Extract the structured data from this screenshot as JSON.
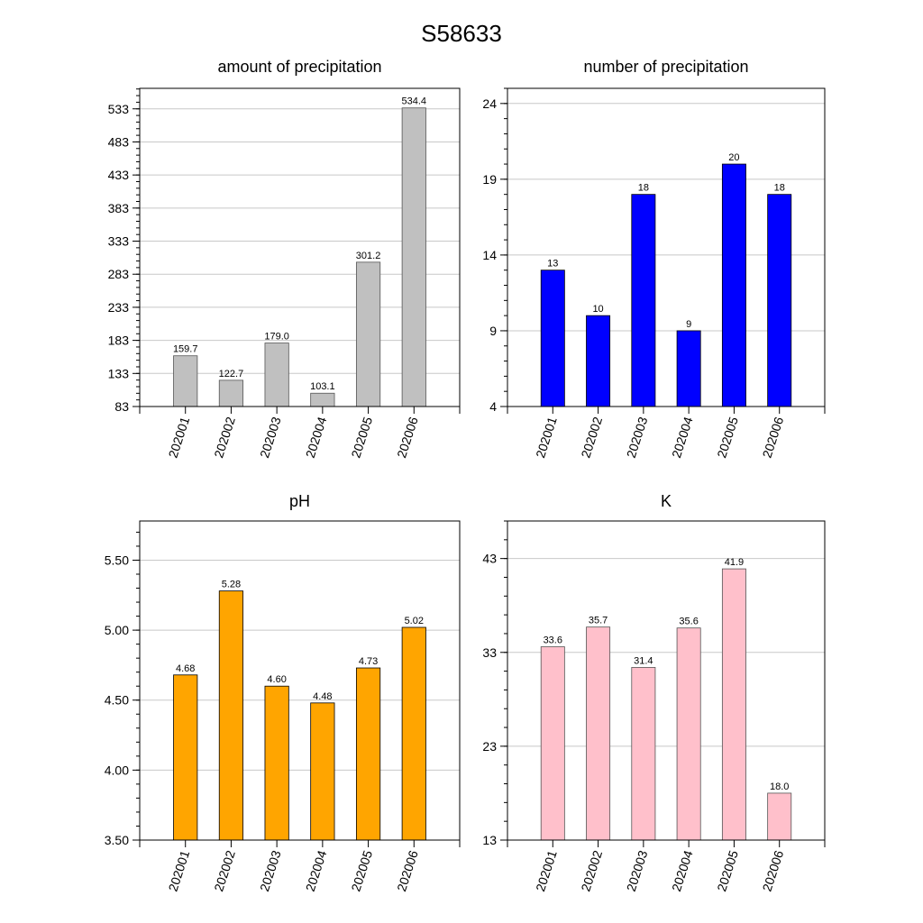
{
  "figure": {
    "title": "S58633"
  },
  "chart_data": [
    {
      "type": "bar",
      "title": "amount of precipitation",
      "xlabel": "",
      "ylabel": "",
      "categories": [
        "202001",
        "202002",
        "202003",
        "202004",
        "202005",
        "202006"
      ],
      "values": [
        159.7,
        122.7,
        179.0,
        103.1,
        301.2,
        534.4
      ],
      "value_labels": [
        "159.7",
        "122.7",
        "179.0",
        "103.1",
        "301.2",
        "534.4"
      ],
      "yticks": [
        83,
        133,
        183,
        233,
        283,
        333,
        383,
        433,
        483,
        533
      ],
      "ylim": [
        83,
        564
      ],
      "minor_step": 10,
      "grid": true,
      "bar_color": "#c0c0c0",
      "edge_color": "#555555"
    },
    {
      "type": "bar",
      "title": "number of precipitation",
      "xlabel": "",
      "ylabel": "",
      "categories": [
        "202001",
        "202002",
        "202003",
        "202004",
        "202005",
        "202006"
      ],
      "values": [
        13,
        10,
        18,
        9,
        20,
        18
      ],
      "value_labels": [
        "13",
        "10",
        "18",
        "9",
        "20",
        "18"
      ],
      "yticks": [
        4,
        9,
        14,
        19,
        24
      ],
      "ylim": [
        4,
        25
      ],
      "minor_step": 1,
      "grid": true,
      "bar_color": "#0000ff",
      "edge_color": "#000000"
    },
    {
      "type": "bar",
      "title": "pH",
      "xlabel": "",
      "ylabel": "",
      "categories": [
        "202001",
        "202002",
        "202003",
        "202004",
        "202005",
        "202006"
      ],
      "values": [
        4.68,
        5.28,
        4.6,
        4.48,
        4.73,
        5.02
      ],
      "value_labels": [
        "4.68",
        "5.28",
        "4.60",
        "4.48",
        "4.73",
        "5.02"
      ],
      "yticks": [
        3.5,
        4.0,
        4.5,
        5.0,
        5.5
      ],
      "ytick_labels": [
        "3.50",
        "4.00",
        "4.50",
        "5.00",
        "5.50"
      ],
      "ylim": [
        3.5,
        5.78
      ],
      "minor_step": 0.1,
      "grid": true,
      "bar_color": "#ffa500",
      "edge_color": "#000000"
    },
    {
      "type": "bar",
      "title": "K",
      "xlabel": "",
      "ylabel": "",
      "categories": [
        "202001",
        "202002",
        "202003",
        "202004",
        "202005",
        "202006"
      ],
      "values": [
        33.6,
        35.7,
        31.4,
        35.6,
        41.9,
        18.0
      ],
      "value_labels": [
        "33.6",
        "35.7",
        "31.4",
        "35.6",
        "41.9",
        "18.0"
      ],
      "yticks": [
        13,
        23,
        33,
        43
      ],
      "ylim": [
        13,
        47
      ],
      "minor_step": 2,
      "grid": true,
      "bar_color": "#ffc0cb",
      "edge_color": "#555555"
    }
  ]
}
